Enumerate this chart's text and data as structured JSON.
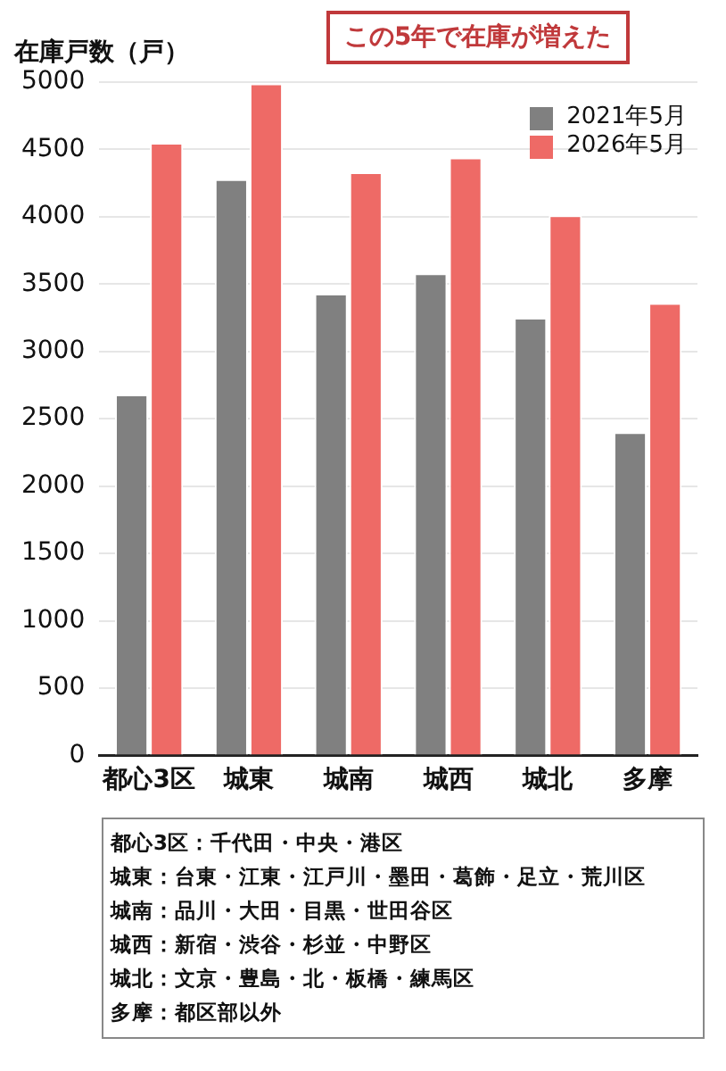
{
  "chart_data": {
    "type": "bar",
    "ylabel": "在庫戸数（戸）",
    "categories": [
      "都心3区",
      "城東",
      "城南",
      "城西",
      "城北",
      "多摩"
    ],
    "series": [
      {
        "name": "2021年5月",
        "color": "#808080",
        "values": [
          2680,
          4280,
          3430,
          3580,
          3250,
          2400
        ]
      },
      {
        "name": "2026年5月",
        "color": "#ee6a66",
        "values": [
          4550,
          4990,
          4330,
          4440,
          4010,
          3360
        ]
      }
    ],
    "ylim": [
      0,
      5000
    ],
    "yticks": [
      0,
      500,
      1000,
      1500,
      2000,
      2500,
      3000,
      3500,
      4000,
      4500,
      5000
    ],
    "grid": "y",
    "legend": "top right",
    "annotations": [
      "この5年で在庫が増えた",
      "都心3区：千代田・中央・港区",
      "城東：台東・江東・江戸川・墨田・葛飾・足立・荒川区",
      "城南：品川・大田・目黒・世田谷区",
      "城西：新宿・渋谷・杉並・中野区",
      "城北：文京・豊島・北・板橋・練馬区",
      "多摩：都区部以外"
    ]
  }
}
